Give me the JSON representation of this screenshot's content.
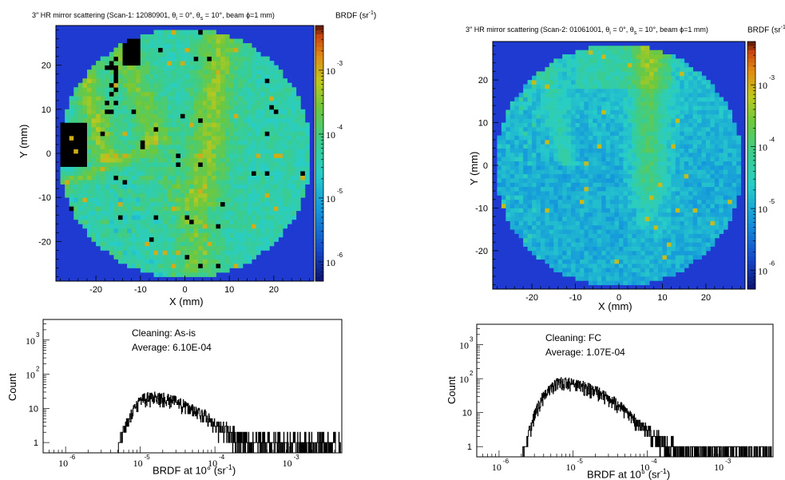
{
  "panels": [
    {
      "title": {
        "pre": "3″ HR mirror scattering  (Scan-1: 12080901, θ",
        "sub1": "i",
        "mid1": " = 0°, θ",
        "sub2": "s",
        "mid2": " = 10°, beam ϕ=1 mm)"
      },
      "colorbar_unit": {
        "pre": "BRDF (sr",
        "sup": "-1",
        "post": ")"
      },
      "xlabel": "X (mm)",
      "ylabel": "Y (mm)",
      "hist_xlabel": {
        "pre": "BRDF at 10° (sr",
        "sup": "-1",
        "post": ")"
      },
      "hist_ylabel": "Count",
      "cleaning": "Cleaning: As-is",
      "average": "Average: 6.10E-04"
    },
    {
      "title": {
        "pre": "3″ HR mirror scattering  (Scan-2: 01061001, θ",
        "sub1": "i",
        "mid1": " = 0°, θ",
        "sub2": "s",
        "mid2": " = 10°, beam ϕ=1 mm)"
      },
      "colorbar_unit": {
        "pre": "BRDF (sr",
        "sup": "-1",
        "post": ")"
      },
      "xlabel": "X (mm)",
      "ylabel": "Y (mm)",
      "hist_xlabel": {
        "pre": "BRDF at 10° (sr",
        "sup": "-1",
        "post": ")"
      },
      "hist_ylabel": "Count",
      "cleaning": "Cleaning: FC",
      "average": "Average: 1.07E-04"
    }
  ],
  "chart_data": [
    {
      "type": "heatmap",
      "name": "scan1-map",
      "x_range": [
        -29,
        29
      ],
      "y_range": [
        -29,
        29
      ],
      "x_ticks": [
        -20,
        -10,
        0,
        10,
        20
      ],
      "y_ticks": [
        -20,
        -10,
        0,
        10,
        20
      ],
      "z_scale": "log",
      "z_range": [
        5e-07,
        0.005
      ],
      "z_tick_exponents": [
        -6,
        -5,
        -4,
        -3
      ],
      "aperture_radius_mm": 28.5,
      "background": "#1e3ad0"
    },
    {
      "type": "heatmap",
      "name": "scan2-map",
      "x_range": [
        -29,
        29
      ],
      "y_range": [
        -29,
        29
      ],
      "x_ticks": [
        -20,
        -10,
        0,
        10,
        20
      ],
      "y_ticks": [
        -20,
        -10,
        0,
        10,
        20
      ],
      "z_scale": "log",
      "z_range": [
        5e-07,
        0.005
      ],
      "z_tick_exponents": [
        -6,
        -5,
        -4,
        -3
      ],
      "aperture_radius_mm": 28.5,
      "background": "#1e3ad0"
    },
    {
      "type": "histogram",
      "name": "scan1-hist",
      "x_scale": "log",
      "x_range": [
        5e-07,
        0.005
      ],
      "x_tick_exponents": [
        -6,
        -5,
        -4,
        -3
      ],
      "y_scale": "log",
      "y_range": [
        0.5,
        4000
      ],
      "y_tick_labels": [
        "1",
        "10",
        "10^2",
        "10^3"
      ],
      "peak_brdf": 1.3e-05,
      "peak_count": 20,
      "tail_level": 1.2
    },
    {
      "type": "histogram",
      "name": "scan2-hist",
      "x_scale": "log",
      "x_range": [
        5e-07,
        0.005
      ],
      "x_tick_exponents": [
        -6,
        -5,
        -4,
        -3
      ],
      "y_scale": "log",
      "y_range": [
        0.5,
        4000
      ],
      "y_tick_labels": [
        "1",
        "10",
        "10^2",
        "10^3"
      ],
      "peak_brdf": 6.5e-06,
      "peak_count": 75,
      "tail_level": 1.0
    }
  ]
}
